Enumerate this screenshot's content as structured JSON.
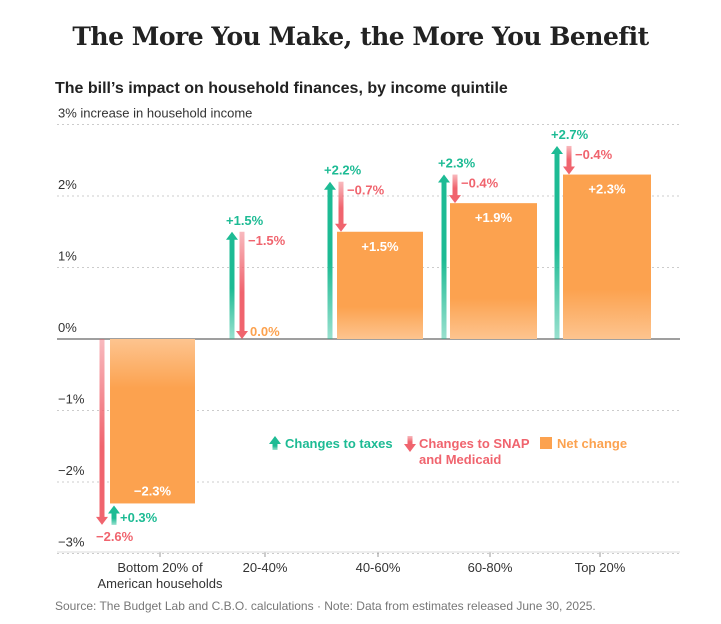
{
  "title": "The More You Make, the More You Benefit",
  "subtitle": "The bill’s impact on household finances, by income quintile",
  "source": "Source: The Budget Lab and C.B.O. calculations  ·  Note: Data from estimates released June 30, 2025.",
  "colors": {
    "taxes": "#1dbb94",
    "snap": "#f0646e",
    "net": "#fca24f"
  },
  "chart_data": {
    "type": "bar",
    "title": "The bill’s impact on household finances, by income quintile",
    "ylabel": "3% increase in household income",
    "ylim": [
      -3,
      3
    ],
    "yticks": [
      3,
      2,
      1,
      0,
      -1,
      -2,
      -3
    ],
    "ytick_labels": [
      "3% increase in household income",
      "2%",
      "1%",
      "0%",
      "−1%",
      "−2%",
      "−3%"
    ],
    "categories": [
      "Bottom 20% of American households",
      "20-40%",
      "40-60%",
      "60-80%",
      "Top 20%"
    ],
    "series": [
      {
        "name": "Changes to taxes",
        "values": [
          0.3,
          1.5,
          2.2,
          2.3,
          2.7
        ],
        "labels": [
          "+0.3%",
          "+1.5%",
          "+2.2%",
          "+2.3%",
          "+2.7%"
        ]
      },
      {
        "name": "Changes to SNAP and Medicaid",
        "values": [
          -2.6,
          -1.5,
          -0.7,
          -0.4,
          -0.4
        ],
        "labels": [
          "−2.6%",
          "−1.5%",
          "−0.7%",
          "−0.4%",
          "−0.4%"
        ]
      },
      {
        "name": "Net change",
        "values": [
          -2.3,
          0.0,
          1.5,
          1.9,
          2.3
        ],
        "labels": [
          "−2.3%",
          "0.0%",
          "+1.5%",
          "+1.9%",
          "+2.3%"
        ]
      }
    ],
    "legend": {
      "placement": "center-right",
      "entries": [
        "Changes to taxes",
        "Changes to SNAP and Medicaid",
        "Net change"
      ]
    },
    "grid": true
  }
}
